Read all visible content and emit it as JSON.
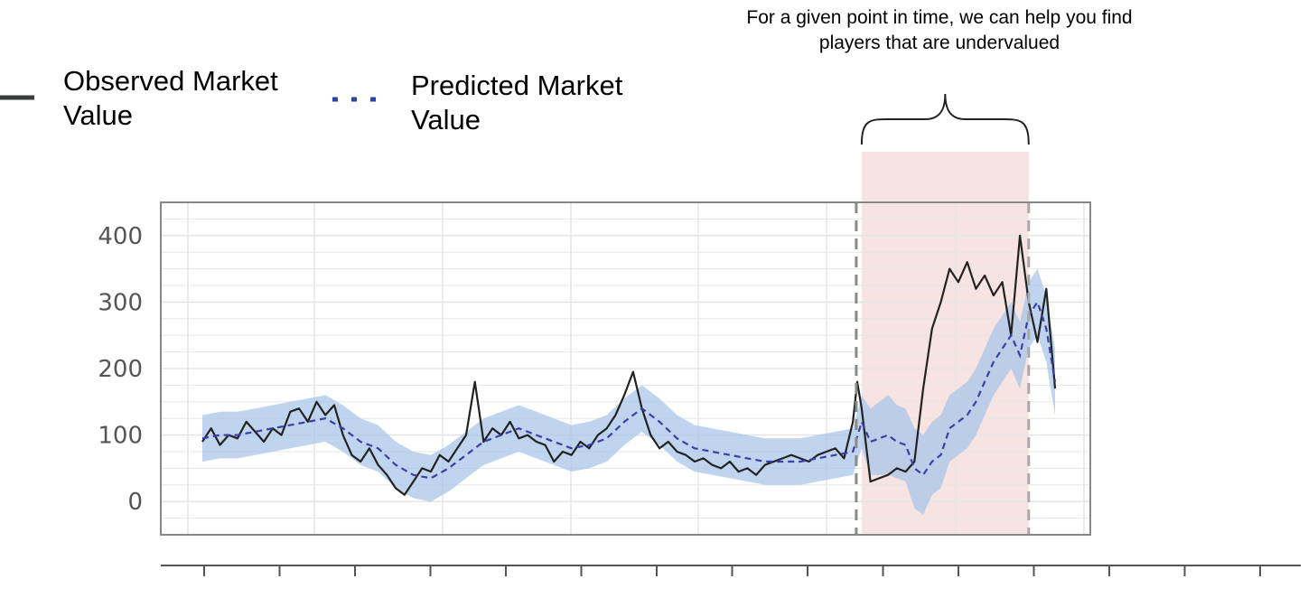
{
  "legend": {
    "observed_label": "Observed Market Value",
    "predicted_label": "Predicted Market Value"
  },
  "annotation": "For a given point in time, we can help you find players that are undervalued",
  "colors": {
    "observed": "#222222",
    "predicted": "#3b3fa8",
    "band": "#aac6e8",
    "highlight": "#f7e3e1",
    "grid": "#e6e6e6",
    "frame": "#888888"
  },
  "chart_data": {
    "type": "line",
    "ylim": [
      -50,
      450
    ],
    "yticks": [
      0,
      100,
      200,
      300,
      400
    ],
    "ytick_labels": [
      "0",
      "100",
      "200",
      "300",
      "400"
    ],
    "x_index_range": [
      0,
      194
    ],
    "highlight_index_range": [
      150,
      188
    ],
    "series": [
      {
        "name": "Observed Market Value",
        "kind": "solid",
        "x": [
          0,
          2,
          4,
          6,
          8,
          10,
          12,
          14,
          16,
          18,
          20,
          22,
          24,
          26,
          28,
          30,
          32,
          34,
          36,
          38,
          40,
          42,
          44,
          46,
          48,
          50,
          52,
          54,
          56,
          58,
          60,
          62,
          64,
          66,
          68,
          70,
          72,
          74,
          76,
          78,
          80,
          82,
          84,
          86,
          88,
          90,
          92,
          94,
          96,
          98,
          100,
          102,
          104,
          106,
          108,
          110,
          112,
          114,
          116,
          118,
          120,
          122,
          124,
          126,
          128,
          130,
          132,
          134,
          136,
          138,
          140,
          142,
          144,
          146,
          148,
          149,
          150,
          152,
          154,
          156,
          158,
          160,
          162,
          164,
          166,
          168,
          170,
          172,
          174,
          176,
          178,
          180,
          182,
          184,
          186,
          188,
          190,
          192,
          194
        ],
        "values": [
          90,
          110,
          85,
          100,
          95,
          120,
          105,
          90,
          110,
          100,
          135,
          140,
          120,
          150,
          130,
          145,
          100,
          70,
          60,
          80,
          55,
          40,
          20,
          10,
          30,
          50,
          45,
          70,
          60,
          80,
          100,
          180,
          90,
          110,
          100,
          120,
          95,
          100,
          90,
          85,
          60,
          75,
          70,
          90,
          80,
          100,
          110,
          130,
          160,
          195,
          140,
          100,
          80,
          90,
          75,
          70,
          60,
          65,
          55,
          50,
          60,
          45,
          50,
          40,
          55,
          60,
          65,
          70,
          65,
          60,
          70,
          75,
          80,
          65,
          120,
          180,
          140,
          30,
          35,
          40,
          50,
          45,
          60,
          170,
          260,
          300,
          350,
          330,
          360,
          320,
          340,
          310,
          330,
          250,
          400,
          300,
          240,
          320,
          170
        ]
      },
      {
        "name": "Predicted Market Value",
        "kind": "dashed",
        "x": [
          0,
          4,
          8,
          12,
          16,
          20,
          24,
          28,
          32,
          36,
          40,
          44,
          48,
          52,
          56,
          60,
          64,
          68,
          72,
          76,
          80,
          84,
          88,
          92,
          96,
          100,
          104,
          108,
          112,
          116,
          120,
          124,
          128,
          132,
          136,
          140,
          144,
          148,
          150,
          152,
          154,
          156,
          158,
          160,
          162,
          164,
          166,
          168,
          170,
          172,
          174,
          176,
          178,
          180,
          182,
          184,
          186,
          188,
          190,
          192,
          194
        ],
        "values": [
          95,
          100,
          100,
          105,
          110,
          115,
          120,
          125,
          110,
          90,
          80,
          55,
          40,
          35,
          50,
          70,
          90,
          100,
          110,
          100,
          90,
          80,
          85,
          95,
          120,
          140,
          120,
          95,
          80,
          75,
          70,
          65,
          60,
          60,
          60,
          65,
          70,
          75,
          120,
          90,
          95,
          100,
          90,
          85,
          50,
          40,
          60,
          70,
          110,
          120,
          130,
          150,
          180,
          210,
          230,
          250,
          220,
          280,
          300,
          260,
          180
        ],
        "band_lower": [
          60,
          65,
          65,
          70,
          75,
          80,
          85,
          90,
          75,
          55,
          45,
          20,
          5,
          0,
          15,
          35,
          55,
          65,
          75,
          65,
          55,
          45,
          50,
          60,
          85,
          105,
          85,
          60,
          45,
          40,
          35,
          30,
          25,
          25,
          25,
          30,
          35,
          40,
          80,
          40,
          40,
          40,
          35,
          30,
          -10,
          -20,
          10,
          20,
          60,
          70,
          80,
          100,
          130,
          160,
          180,
          200,
          170,
          230,
          250,
          210,
          130
        ],
        "band_upper": [
          130,
          135,
          135,
          140,
          145,
          150,
          155,
          160,
          145,
          125,
          115,
          90,
          75,
          70,
          85,
          105,
          125,
          135,
          145,
          135,
          125,
          115,
          120,
          130,
          155,
          175,
          155,
          130,
          115,
          110,
          105,
          100,
          95,
          95,
          95,
          100,
          105,
          110,
          160,
          140,
          150,
          160,
          145,
          140,
          110,
          100,
          120,
          130,
          160,
          170,
          180,
          200,
          230,
          260,
          280,
          300,
          270,
          330,
          350,
          310,
          230
        ]
      }
    ]
  },
  "bottom_axis": {
    "tick_count": 15
  }
}
